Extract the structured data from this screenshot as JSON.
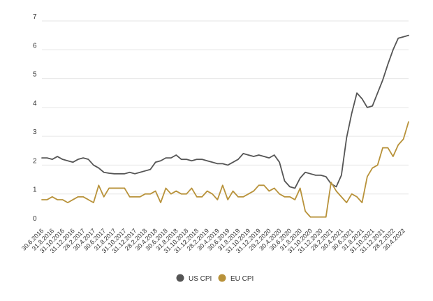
{
  "chart_data": {
    "type": "line",
    "title": "",
    "xlabel": "",
    "ylabel": "",
    "ylim": [
      0,
      7
    ],
    "yticks": [
      0,
      1,
      2,
      3,
      4,
      5,
      6,
      7
    ],
    "grid": "horizontal",
    "legend_position": "bottom-center",
    "x_tick_labels": [
      "30.6.2016",
      "31.8.2016",
      "31.10.2016",
      "31.12.2016",
      "28.2.2017",
      "30.4.2017",
      "30.6.2017",
      "31.8.2017",
      "31.10.2017",
      "31.12.2017",
      "28.2.2018",
      "30.4.2018",
      "30.6.2018",
      "31.8.2018",
      "31.10.2018",
      "31.12.2018",
      "28.2.2019",
      "30.4.2019",
      "30.6.2019",
      "31.8.2019",
      "31.10.2019",
      "31.12.2019",
      "29.2.2020",
      "30.4.2020",
      "30.6.2020",
      "31.8.2020",
      "31.10.2020",
      "31.12.2020",
      "28.2.2021",
      "30.4.2021",
      "30.6.2021",
      "31.8.2021",
      "31.10.2021",
      "31.12.2021",
      "28.2.2022",
      "30.4.2022"
    ],
    "x_start_month": "2016-06",
    "series": [
      {
        "name": "US CPI",
        "color": "#555555",
        "values": [
          2.25,
          2.25,
          2.2,
          2.3,
          2.2,
          2.15,
          2.1,
          2.2,
          2.25,
          2.2,
          2.0,
          1.9,
          1.75,
          1.72,
          1.7,
          1.7,
          1.7,
          1.75,
          1.7,
          1.75,
          1.8,
          1.85,
          2.1,
          2.15,
          2.25,
          2.25,
          2.35,
          2.2,
          2.2,
          2.15,
          2.2,
          2.2,
          2.15,
          2.1,
          2.05,
          2.05,
          2.0,
          2.1,
          2.2,
          2.4,
          2.35,
          2.3,
          2.35,
          2.3,
          2.25,
          2.35,
          2.1,
          1.45,
          1.25,
          1.2,
          1.55,
          1.75,
          1.7,
          1.65,
          1.65,
          1.6,
          1.35,
          1.25,
          1.65,
          2.95,
          3.8,
          4.5,
          4.3,
          4.0,
          4.05,
          4.5,
          4.95,
          5.5,
          6.0,
          6.4,
          6.45,
          6.5
        ]
      },
      {
        "name": "EU CPI",
        "color": "#b8923a",
        "values": [
          0.8,
          0.8,
          0.9,
          0.8,
          0.8,
          0.7,
          0.8,
          0.9,
          0.9,
          0.8,
          0.7,
          1.3,
          0.9,
          1.2,
          1.2,
          1.2,
          1.2,
          0.9,
          0.9,
          0.9,
          1.0,
          1.0,
          1.1,
          0.7,
          1.2,
          1.0,
          1.1,
          1.0,
          1.0,
          1.2,
          0.9,
          0.9,
          1.1,
          1.0,
          0.8,
          1.3,
          0.8,
          1.1,
          0.9,
          0.9,
          1.0,
          1.1,
          1.3,
          1.3,
          1.1,
          1.2,
          1.0,
          0.9,
          0.9,
          0.8,
          1.2,
          0.4,
          0.2,
          0.2,
          0.2,
          0.2,
          1.4,
          1.1,
          0.9,
          0.7,
          1.0,
          0.9,
          0.7,
          1.6,
          1.9,
          2.0,
          2.6,
          2.6,
          2.3,
          2.7,
          2.9,
          3.5
        ]
      }
    ]
  }
}
